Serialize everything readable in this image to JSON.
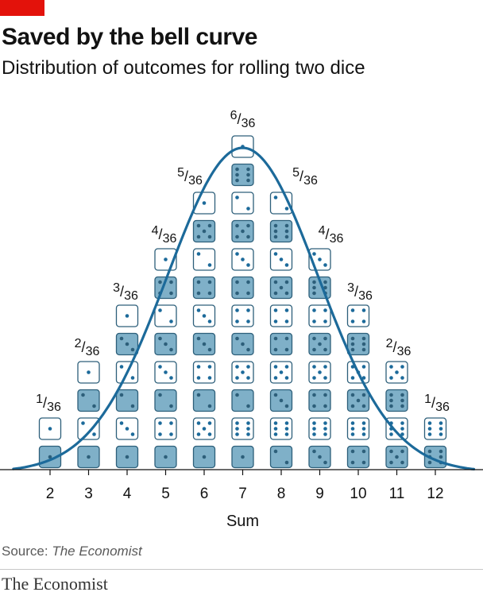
{
  "chart_data": {
    "type": "bar",
    "title": "Saved by the bell curve",
    "subtitle": "Distribution of outcomes for rolling two dice",
    "xlabel": "Sum",
    "categories": [
      "2",
      "3",
      "4",
      "5",
      "6",
      "7",
      "8",
      "9",
      "10",
      "11",
      "12"
    ],
    "values": [
      1,
      2,
      3,
      4,
      5,
      6,
      5,
      4,
      3,
      2,
      1
    ],
    "probability_labels": [
      {
        "sum": 2,
        "num": "1",
        "den": "36"
      },
      {
        "sum": 3,
        "num": "2",
        "den": "36"
      },
      {
        "sum": 4,
        "num": "3",
        "den": "36"
      },
      {
        "sum": 5,
        "num": "4",
        "den": "36"
      },
      {
        "sum": 6,
        "num": "5",
        "den": "36"
      },
      {
        "sum": 7,
        "num": "6",
        "den": "36"
      },
      {
        "sum": 8,
        "num": "5",
        "den": "36"
      },
      {
        "sum": 9,
        "num": "4",
        "den": "36"
      },
      {
        "sum": 10,
        "num": "3",
        "den": "36"
      },
      {
        "sum": 11,
        "num": "2",
        "den": "36"
      },
      {
        "sum": 12,
        "num": "1",
        "den": "36"
      }
    ],
    "dice_pairs": {
      "2": [
        [
          1,
          1
        ]
      ],
      "3": [
        [
          1,
          2
        ],
        [
          2,
          1
        ]
      ],
      "4": [
        [
          1,
          3
        ],
        [
          2,
          2
        ],
        [
          3,
          1
        ]
      ],
      "5": [
        [
          1,
          4
        ],
        [
          2,
          3
        ],
        [
          3,
          2
        ],
        [
          4,
          1
        ]
      ],
      "6": [
        [
          1,
          5
        ],
        [
          2,
          4
        ],
        [
          3,
          3
        ],
        [
          4,
          2
        ],
        [
          5,
          1
        ]
      ],
      "7": [
        [
          1,
          6
        ],
        [
          2,
          5
        ],
        [
          3,
          4
        ],
        [
          4,
          3
        ],
        [
          5,
          2
        ],
        [
          6,
          1
        ]
      ],
      "8": [
        [
          2,
          6
        ],
        [
          3,
          5
        ],
        [
          4,
          4
        ],
        [
          5,
          3
        ],
        [
          6,
          2
        ]
      ],
      "9": [
        [
          3,
          6
        ],
        [
          4,
          5
        ],
        [
          5,
          4
        ],
        [
          6,
          3
        ]
      ],
      "10": [
        [
          4,
          6
        ],
        [
          5,
          5
        ],
        [
          6,
          4
        ]
      ],
      "11": [
        [
          5,
          6
        ],
        [
          6,
          5
        ]
      ],
      "12": [
        [
          6,
          6
        ]
      ]
    },
    "curve": "normal",
    "grid": false,
    "colors": {
      "die_dark": "#7fb0c8",
      "die_light": "#ffffff",
      "die_stroke": "#2d5f7a",
      "pip": "#1c6a9a",
      "curve": "#1c6a9a"
    }
  },
  "footer": {
    "source_prefix": "Source:",
    "source_name": "The Economist",
    "logo": "The Economist"
  }
}
